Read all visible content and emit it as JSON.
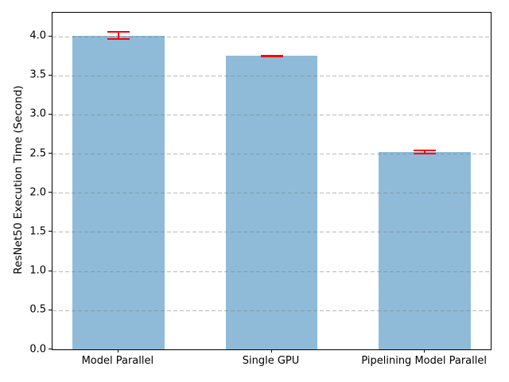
{
  "chart_data": {
    "type": "bar",
    "title": "",
    "xlabel": "",
    "ylabel": "ResNet50 Execution Time (Second)",
    "categories": [
      "Model Parallel",
      "Single GPU",
      "Pipelining Model Parallel"
    ],
    "values": [
      4.01,
      3.75,
      2.52
    ],
    "errors": [
      0.05,
      0.005,
      0.02
    ],
    "ylim": [
      0,
      4.3
    ],
    "yticks": [
      0.0,
      0.5,
      1.0,
      1.5,
      2.0,
      2.5,
      3.0,
      3.5,
      4.0
    ],
    "ytick_labels": [
      "0.0",
      "0.5",
      "1.0",
      "1.5",
      "2.0",
      "2.5",
      "3.0",
      "3.5",
      "4.0"
    ],
    "grid": {
      "axis": "y",
      "style": "dashed",
      "drawn_over_bars": true,
      "color": "#b0b0b0"
    },
    "legend": "none",
    "colors": {
      "bar": "#8fbbd9",
      "error_bar": "#ff0000",
      "spine": "#000000",
      "text": "#000000",
      "background": "#ffffff"
    }
  }
}
